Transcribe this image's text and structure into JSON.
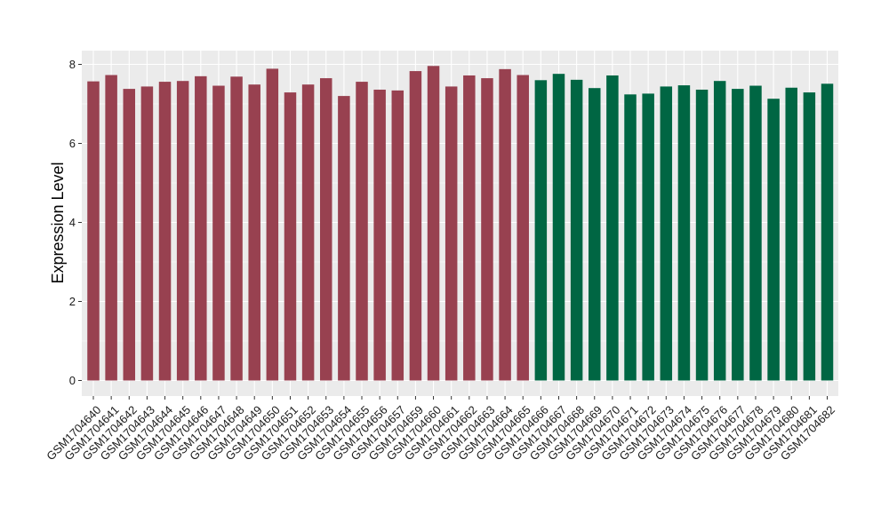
{
  "chart_data": {
    "type": "bar",
    "ylabel": "Expression Level",
    "xlabel": "",
    "ylim": [
      0,
      8.3
    ],
    "yticks": [
      0,
      2,
      4,
      6,
      8
    ],
    "grid": true,
    "categories": [
      "GSM1704640",
      "GSM1704641",
      "GSM1704642",
      "GSM1704643",
      "GSM1704644",
      "GSM1704645",
      "GSM1704646",
      "GSM1704647",
      "GSM1704648",
      "GSM1704649",
      "GSM1704650",
      "GSM1704651",
      "GSM1704652",
      "GSM1704653",
      "GSM1704654",
      "GSM1704655",
      "GSM1704656",
      "GSM1704657",
      "GSM1704659",
      "GSM1704660",
      "GSM1704661",
      "GSM1704662",
      "GSM1704663",
      "GSM1704664",
      "GSM1704665",
      "GSM1704666",
      "GSM1704667",
      "GSM1704668",
      "GSM1704669",
      "GSM1704670",
      "GSM1704671",
      "GSM1704672",
      "GSM1704673",
      "GSM1704674",
      "GSM1704675",
      "GSM1704676",
      "GSM1704677",
      "GSM1704678",
      "GSM1704679",
      "GSM1704680",
      "GSM1704681",
      "GSM1704682"
    ],
    "values": [
      7.57,
      7.73,
      7.38,
      7.44,
      7.56,
      7.58,
      7.7,
      7.46,
      7.69,
      7.49,
      7.89,
      7.29,
      7.49,
      7.65,
      7.2,
      7.56,
      7.36,
      7.34,
      7.83,
      7.96,
      7.44,
      7.72,
      7.65,
      7.88,
      7.73,
      7.6,
      7.76,
      7.61,
      7.4,
      7.72,
      7.24,
      7.26,
      7.44,
      7.47,
      7.36,
      7.58,
      7.38,
      7.46,
      7.13,
      7.41,
      7.29,
      7.51
    ],
    "groups": [
      0,
      0,
      0,
      0,
      0,
      0,
      0,
      0,
      0,
      0,
      0,
      0,
      0,
      0,
      0,
      0,
      0,
      0,
      0,
      0,
      0,
      0,
      0,
      0,
      0,
      1,
      1,
      1,
      1,
      1,
      1,
      1,
      1,
      1,
      1,
      1,
      1,
      1,
      1,
      1,
      1,
      1
    ],
    "colors": [
      "#984150",
      "#006643"
    ],
    "panel_background": "#ebebeb",
    "gridline_color": "#ffffff"
  }
}
